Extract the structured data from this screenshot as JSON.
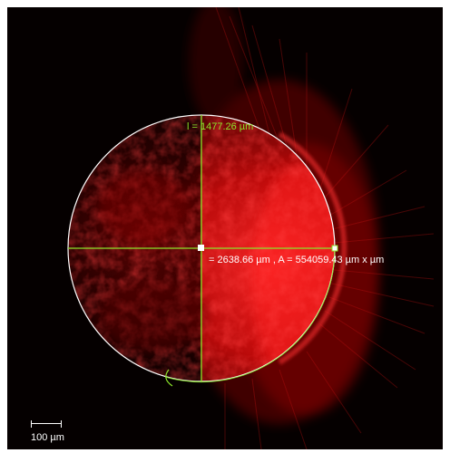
{
  "image": {
    "description_colors": {
      "background": "#000000",
      "fluorescence": "#ff1a1a",
      "circle_outline": "#ffffff",
      "measure_lines": "#8BE52A"
    }
  },
  "measurements": {
    "diameter_label": "l = 1477.26 µm",
    "circumference_area_label": "= 2638.66 µm ,  A = 554059.43 µm x µm"
  },
  "scale_bar": {
    "label": "100 µm"
  }
}
